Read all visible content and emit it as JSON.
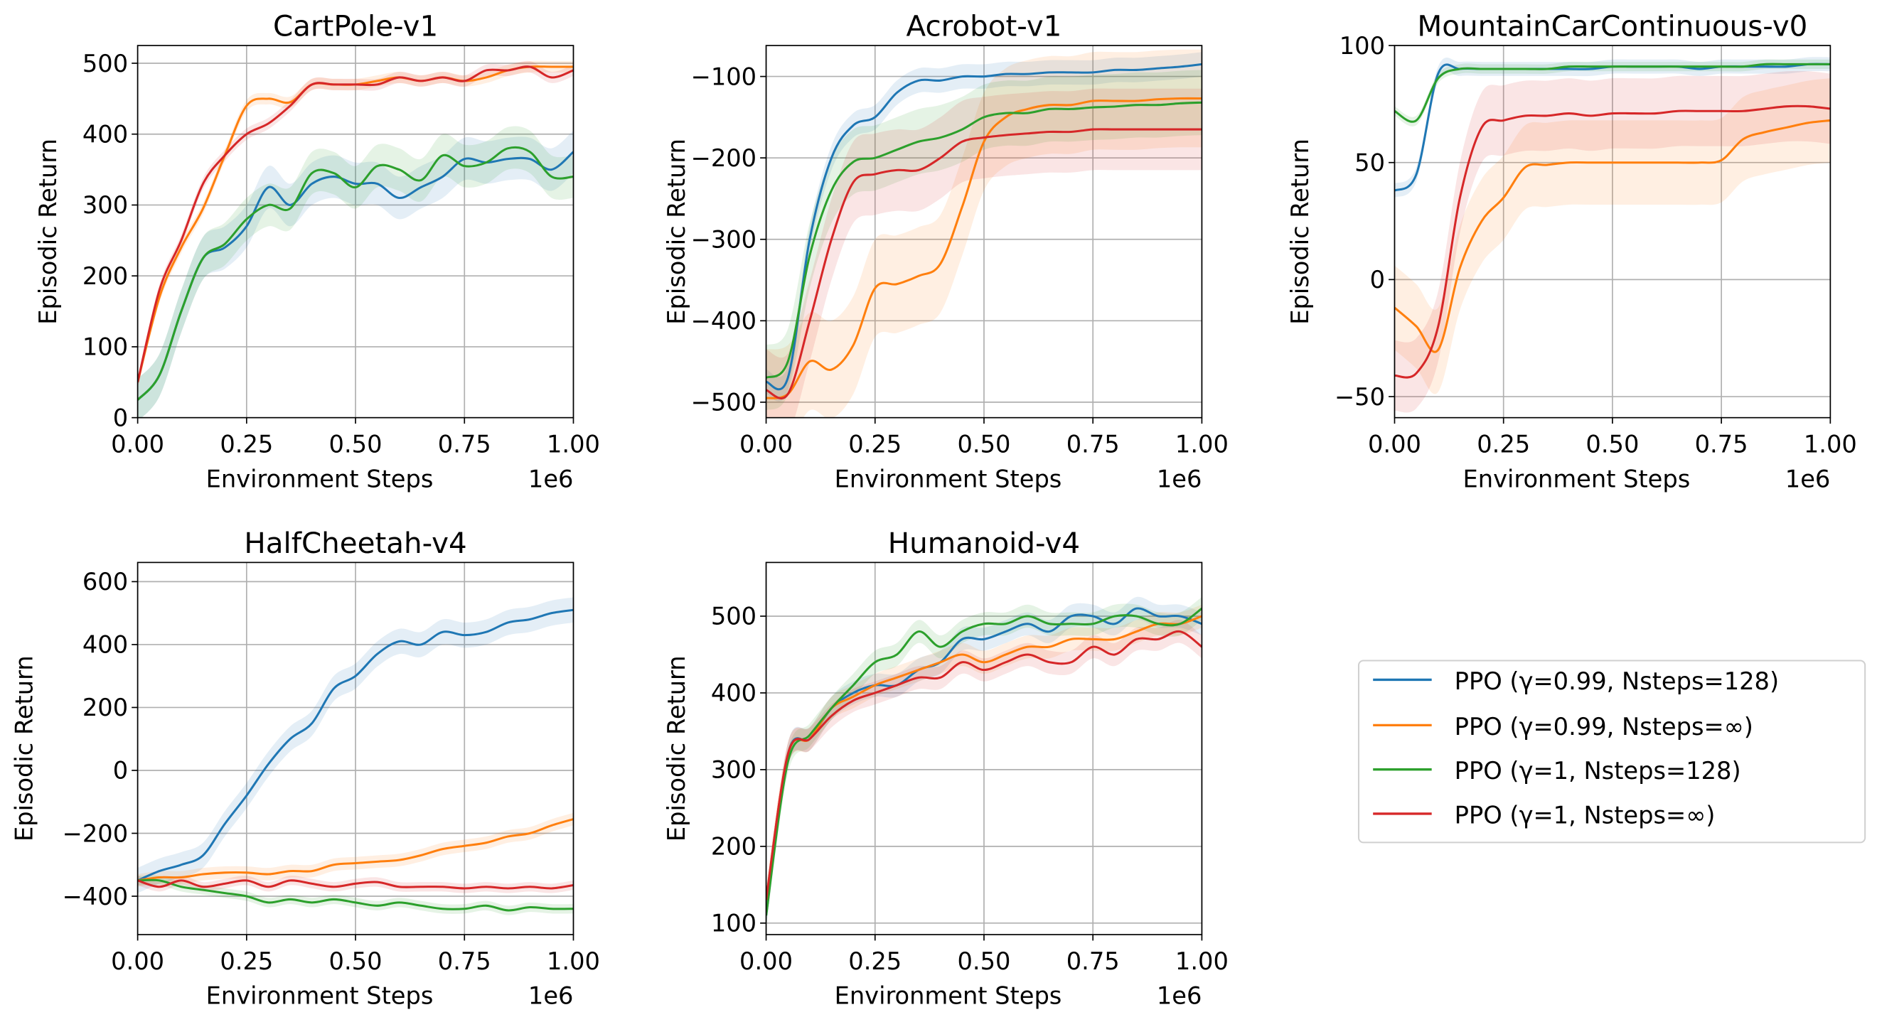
{
  "legend": {
    "entries": [
      {
        "label": "PPO (γ=0.99, Nsteps=128)",
        "color": "#1f77b4"
      },
      {
        "label": "PPO (γ=0.99, Nsteps=∞)",
        "color": "#ff7f0e"
      },
      {
        "label": "PPO (γ=1, Nsteps=128)",
        "color": "#2ca02c"
      },
      {
        "label": "PPO (γ=1, Nsteps=∞)",
        "color": "#d62728"
      }
    ],
    "placement": "right of bottom row"
  },
  "chart_data": [
    {
      "type": "line",
      "title": "CartPole-v1",
      "xlabel": "Environment Steps",
      "x_multiplier": "1e6",
      "ylabel": "Episodic Return",
      "xlim": [
        0,
        1
      ],
      "ylim": [
        0,
        525
      ],
      "grid": true,
      "xticks": [
        "0.00",
        "0.25",
        "0.50",
        "0.75",
        "1.00"
      ],
      "xtick_values": [
        0,
        0.25,
        0.5,
        0.75,
        1
      ],
      "yticks": [
        "0",
        "100",
        "200",
        "300",
        "400",
        "500"
      ],
      "ytick_values": [
        0,
        100,
        200,
        300,
        400,
        500
      ],
      "x": [
        0,
        0.05,
        0.1,
        0.15,
        0.2,
        0.25,
        0.3,
        0.35,
        0.4,
        0.45,
        0.5,
        0.55,
        0.6,
        0.65,
        0.7,
        0.75,
        0.8,
        0.85,
        0.9,
        0.95,
        1.0
      ],
      "series": [
        {
          "name": "PPO (γ=0.99, Nsteps=128)",
          "band": 30,
          "values": [
            25,
            60,
            150,
            225,
            240,
            270,
            325,
            300,
            330,
            340,
            330,
            330,
            310,
            325,
            340,
            365,
            360,
            365,
            365,
            350,
            375
          ]
        },
        {
          "name": "PPO (γ=0.99, Nsteps=∞)",
          "band": 8,
          "values": [
            50,
            170,
            240,
            295,
            370,
            440,
            450,
            445,
            470,
            470,
            470,
            475,
            480,
            475,
            480,
            475,
            480,
            490,
            495,
            495,
            495
          ]
        },
        {
          "name": "PPO (γ=1, Nsteps=128)",
          "band": 30,
          "values": [
            25,
            60,
            150,
            225,
            245,
            280,
            300,
            295,
            345,
            345,
            325,
            355,
            350,
            335,
            370,
            355,
            360,
            380,
            375,
            340,
            340
          ]
        },
        {
          "name": "PPO (γ=1, Nsteps=∞)",
          "band": 8,
          "values": [
            50,
            180,
            250,
            330,
            370,
            400,
            415,
            440,
            470,
            470,
            470,
            470,
            480,
            475,
            480,
            475,
            490,
            490,
            495,
            480,
            490
          ]
        }
      ]
    },
    {
      "type": "line",
      "title": "Acrobot-v1",
      "xlabel": "Environment Steps",
      "x_multiplier": "1e6",
      "ylabel": "Episodic Return",
      "xlim": [
        0,
        1
      ],
      "ylim": [
        -519,
        -62
      ],
      "grid": true,
      "xticks": [
        "0.00",
        "0.25",
        "0.50",
        "0.75",
        "1.00"
      ],
      "xtick_values": [
        0,
        0.25,
        0.5,
        0.75,
        1
      ],
      "yticks": [
        "−500",
        "−400",
        "−300",
        "−200",
        "−100"
      ],
      "ytick_values": [
        -500,
        -400,
        -300,
        -200,
        -100
      ],
      "x": [
        0,
        0.05,
        0.1,
        0.15,
        0.2,
        0.25,
        0.3,
        0.35,
        0.4,
        0.45,
        0.5,
        0.55,
        0.6,
        0.65,
        0.7,
        0.75,
        0.8,
        0.85,
        0.9,
        0.95,
        1.0
      ],
      "series": [
        {
          "name": "PPO (γ=0.99, Nsteps=128)",
          "band": 15,
          "values": [
            -475,
            -470,
            -300,
            -200,
            -160,
            -150,
            -120,
            -105,
            -105,
            -100,
            -100,
            -97,
            -97,
            -95,
            -95,
            -95,
            -92,
            -92,
            -90,
            -88,
            -85
          ]
        },
        {
          "name": "PPO (γ=0.99, Nsteps=∞)",
          "band": 60,
          "values": [
            -495,
            -490,
            -450,
            -460,
            -430,
            -360,
            -355,
            -345,
            -330,
            -260,
            -180,
            -150,
            -140,
            -135,
            -135,
            -130,
            -130,
            -130,
            -128,
            -127,
            -127
          ]
        },
        {
          "name": "PPO (γ=1, Nsteps=128)",
          "band": 40,
          "values": [
            -470,
            -450,
            -320,
            -240,
            -205,
            -200,
            -190,
            -180,
            -175,
            -165,
            -150,
            -145,
            -145,
            -140,
            -140,
            -138,
            -137,
            -135,
            -135,
            -133,
            -132
          ]
        },
        {
          "name": "PPO (γ=1, Nsteps=∞)",
          "band": 50,
          "values": [
            -485,
            -490,
            -400,
            -300,
            -230,
            -220,
            -215,
            -215,
            -200,
            -180,
            -175,
            -172,
            -170,
            -168,
            -168,
            -165,
            -165,
            -165,
            -165,
            -165,
            -165
          ]
        }
      ]
    },
    {
      "type": "line",
      "title": "MountainCarContinuous-v0",
      "xlabel": "Environment Steps",
      "x_multiplier": "1e6",
      "ylabel": "Episodic Return",
      "xlim": [
        0,
        1
      ],
      "ylim": [
        -59,
        100
      ],
      "grid": true,
      "xticks": [
        "0.00",
        "0.25",
        "0.50",
        "0.75",
        "1.00"
      ],
      "xtick_values": [
        0,
        0.25,
        0.5,
        0.75,
        1
      ],
      "yticks": [
        "−50",
        "0",
        "50",
        "100"
      ],
      "ytick_values": [
        -50,
        0,
        50,
        100
      ],
      "x": [
        0,
        0.05,
        0.1,
        0.15,
        0.2,
        0.25,
        0.3,
        0.35,
        0.4,
        0.45,
        0.5,
        0.55,
        0.6,
        0.65,
        0.7,
        0.75,
        0.8,
        0.85,
        0.9,
        0.95,
        1.0
      ],
      "series": [
        {
          "name": "PPO (γ=0.99, Nsteps=128)",
          "band": 3,
          "values": [
            38,
            45,
            88,
            90,
            90,
            90,
            90,
            90,
            90,
            90,
            91,
            91,
            91,
            91,
            90,
            91,
            91,
            91,
            91,
            92,
            92
          ]
        },
        {
          "name": "PPO (γ=0.99, Nsteps=∞)",
          "band": 18,
          "values": [
            -12,
            -20,
            -30,
            5,
            25,
            35,
            48,
            49,
            50,
            50,
            50,
            50,
            50,
            50,
            50,
            51,
            60,
            63,
            65,
            67,
            68
          ]
        },
        {
          "name": "PPO (γ=1, Nsteps=128)",
          "band": 2,
          "values": [
            72,
            68,
            86,
            90,
            90,
            90,
            90,
            90,
            91,
            91,
            91,
            91,
            91,
            91,
            91,
            91,
            91,
            92,
            92,
            92,
            92
          ]
        },
        {
          "name": "PPO (γ=1, Nsteps=∞)",
          "band": 15,
          "values": [
            -41,
            -40,
            -20,
            35,
            65,
            68,
            70,
            70,
            71,
            70,
            71,
            71,
            71,
            72,
            72,
            72,
            72,
            73,
            74,
            74,
            73
          ]
        }
      ]
    },
    {
      "type": "line",
      "title": "HalfCheetah-v4",
      "xlabel": "Environment Steps",
      "x_multiplier": "1e6",
      "ylabel": "Episodic Return",
      "xlim": [
        0,
        1
      ],
      "ylim": [
        -522,
        661
      ],
      "grid": true,
      "xticks": [
        "0.00",
        "0.25",
        "0.50",
        "0.75",
        "1.00"
      ],
      "xtick_values": [
        0,
        0.25,
        0.5,
        0.75,
        1
      ],
      "yticks": [
        "−400",
        "−200",
        "0",
        "200",
        "400",
        "600"
      ],
      "ytick_values": [
        -400,
        -200,
        0,
        200,
        400,
        600
      ],
      "x": [
        0,
        0.05,
        0.1,
        0.15,
        0.2,
        0.25,
        0.3,
        0.35,
        0.4,
        0.45,
        0.5,
        0.55,
        0.6,
        0.65,
        0.7,
        0.75,
        0.8,
        0.85,
        0.9,
        0.95,
        1.0
      ],
      "series": [
        {
          "name": "PPO (γ=0.99, Nsteps=128)",
          "band": 40,
          "values": [
            -350,
            -320,
            -300,
            -270,
            -170,
            -80,
            20,
            100,
            150,
            260,
            300,
            370,
            410,
            400,
            440,
            430,
            440,
            470,
            480,
            500,
            510
          ]
        },
        {
          "name": "PPO (γ=0.99, Nsteps=∞)",
          "band": 20,
          "values": [
            -350,
            -340,
            -340,
            -330,
            -325,
            -325,
            -330,
            -320,
            -320,
            -300,
            -295,
            -290,
            -285,
            -270,
            -250,
            -240,
            -230,
            -210,
            -200,
            -175,
            -155
          ]
        },
        {
          "name": "PPO (γ=1, Nsteps=128)",
          "band": 15,
          "values": [
            -350,
            -350,
            -370,
            -380,
            -390,
            -400,
            -420,
            -410,
            -420,
            -410,
            -420,
            -430,
            -420,
            -430,
            -440,
            -440,
            -430,
            -445,
            -435,
            -440,
            -440
          ]
        },
        {
          "name": "PPO (γ=1, Nsteps=∞)",
          "band": 15,
          "values": [
            -350,
            -370,
            -350,
            -370,
            -360,
            -350,
            -370,
            -350,
            -360,
            -370,
            -360,
            -355,
            -370,
            -370,
            -370,
            -375,
            -370,
            -375,
            -370,
            -375,
            -365
          ]
        }
      ]
    },
    {
      "type": "line",
      "title": "Humanoid-v4",
      "xlabel": "Environment Steps",
      "x_multiplier": "1e6",
      "ylabel": "Episodic Return",
      "xlim": [
        0,
        1
      ],
      "ylim": [
        85,
        570
      ],
      "grid": true,
      "xticks": [
        "0.00",
        "0.25",
        "0.50",
        "0.75",
        "1.00"
      ],
      "xtick_values": [
        0,
        0.25,
        0.5,
        0.75,
        1
      ],
      "yticks": [
        "100",
        "200",
        "300",
        "400",
        "500"
      ],
      "ytick_values": [
        100,
        200,
        300,
        400,
        500
      ],
      "x": [
        0,
        0.05,
        0.1,
        0.15,
        0.2,
        0.25,
        0.3,
        0.35,
        0.4,
        0.45,
        0.5,
        0.55,
        0.6,
        0.65,
        0.7,
        0.75,
        0.8,
        0.85,
        0.9,
        0.95,
        1.0
      ],
      "series": [
        {
          "name": "PPO (γ=0.99, Nsteps=128)",
          "band": 15,
          "values": [
            110,
            320,
            340,
            380,
            400,
            410,
            410,
            430,
            440,
            470,
            470,
            480,
            490,
            480,
            500,
            500,
            490,
            510,
            500,
            500,
            490
          ]
        },
        {
          "name": "PPO (γ=0.99, Nsteps=∞)",
          "band": 15,
          "values": [
            130,
            320,
            340,
            380,
            395,
            410,
            420,
            430,
            440,
            450,
            440,
            450,
            460,
            460,
            470,
            470,
            470,
            480,
            490,
            490,
            500
          ]
        },
        {
          "name": "PPO (γ=1, Nsteps=128)",
          "band": 15,
          "values": [
            110,
            310,
            345,
            380,
            410,
            440,
            450,
            480,
            460,
            480,
            490,
            490,
            500,
            490,
            490,
            490,
            500,
            500,
            490,
            490,
            510
          ]
        },
        {
          "name": "PPO (γ=1, Nsteps=∞)",
          "band": 15,
          "values": [
            130,
            320,
            340,
            370,
            390,
            400,
            410,
            420,
            420,
            440,
            430,
            440,
            450,
            440,
            440,
            460,
            450,
            470,
            470,
            480,
            460
          ]
        }
      ]
    }
  ]
}
